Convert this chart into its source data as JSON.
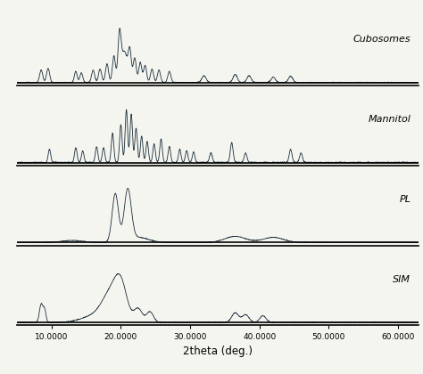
{
  "xlabel": "2theta (deg.)",
  "xlim": [
    5.0,
    63.0
  ],
  "xticks": [
    10,
    20,
    30,
    40,
    50,
    60
  ],
  "xticklabels": [
    "10.0000",
    "20.0000",
    "30.0000",
    "40.0000",
    "50.0000",
    "60.0000"
  ],
  "labels": [
    "Cubosomes",
    "Mannitol",
    "PL",
    "SIM"
  ],
  "line_color": "#1a2e3a",
  "background_color": "#f5f5f0",
  "seed": 7
}
